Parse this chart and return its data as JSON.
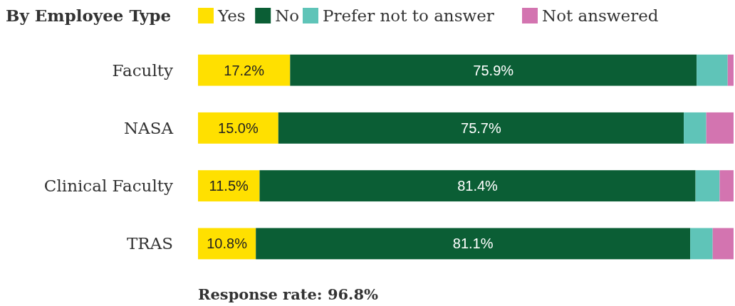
{
  "chart_data": {
    "type": "bar",
    "orientation": "horizontal",
    "stacked": true,
    "title": "By Employee Type",
    "categories": [
      "Faculty",
      "NASA",
      "Clinical Faculty",
      "TRAS"
    ],
    "series": [
      {
        "name": "Yes",
        "color": "#ffe000",
        "values": [
          17.2,
          15.0,
          11.5,
          10.8
        ],
        "value_labels": [
          "17.2%",
          "15.0%",
          "11.5%",
          "10.8%"
        ]
      },
      {
        "name": "No",
        "color": "#0b5e35",
        "values": [
          75.9,
          75.7,
          81.4,
          81.1
        ],
        "value_labels": [
          "75.9%",
          "75.7%",
          "81.4%",
          "81.1%"
        ]
      },
      {
        "name": "Prefer not to answer",
        "color": "#5fc4b8",
        "values": [
          5.8,
          4.2,
          4.5,
          4.2
        ]
      },
      {
        "name": "Not answered",
        "color": "#d374b0",
        "values": [
          1.1,
          5.1,
          2.6,
          3.9
        ]
      }
    ],
    "legend": "top",
    "annotations": [
      "Response rate: 96.8%"
    ]
  }
}
